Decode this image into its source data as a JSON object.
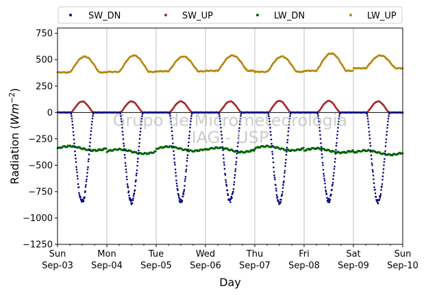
{
  "chart_data": {
    "type": "scatter",
    "ylabel_prefix": "Radiation (",
    "ylabel_math": "Wm",
    "ylabel_exp": "−2",
    "ylabel_suffix": ")",
    "xlabel": "Day",
    "ylim": [
      -1250,
      800
    ],
    "yticks": [
      750,
      500,
      250,
      0,
      -250,
      -500,
      -750,
      -1000,
      -1250
    ],
    "ytick_labels": [
      "750",
      "500",
      "250",
      "0",
      "−250",
      "−500",
      "−750",
      "−1000",
      "−1250"
    ],
    "xlim": [
      0,
      7
    ],
    "xticks": [
      {
        "day": "Sun",
        "date": "Sep-03"
      },
      {
        "day": "Mon",
        "date": "Sep-04"
      },
      {
        "day": "Tue",
        "date": "Sep-05"
      },
      {
        "day": "Wed",
        "date": "Sep-06"
      },
      {
        "day": "Thu",
        "date": "Sep-07"
      },
      {
        "day": "Fri",
        "date": "Sep-08"
      },
      {
        "day": "Sat",
        "date": "Sep-09"
      },
      {
        "day": "Sun",
        "date": "Sep-10"
      }
    ],
    "grid": "vertical",
    "zero_line": true,
    "legend_position": "top",
    "watermark": [
      "Grupo de Micrometeorologia",
      "IAG - USP"
    ],
    "series": [
      {
        "name": "SW_DN",
        "color": "#000080",
        "daily_min": [
          -870,
          -870,
          -865,
          -860,
          -880,
          -860,
          -870
        ]
      },
      {
        "name": "SW_UP",
        "color": "#a52a2a",
        "daily_max": [
          105,
          105,
          105,
          105,
          110,
          110,
          105
        ]
      },
      {
        "name": "LW_DN",
        "color": "#006400",
        "daily_mean": [
          -340,
          -370,
          -345,
          -355,
          -340,
          -360,
          -380
        ]
      },
      {
        "name": "LW_UP",
        "color": "#b8860b",
        "daily_peak": [
          530,
          540,
          530,
          540,
          530,
          560,
          540
        ],
        "daily_base": [
          380,
          385,
          390,
          395,
          385,
          395,
          420
        ]
      }
    ]
  }
}
